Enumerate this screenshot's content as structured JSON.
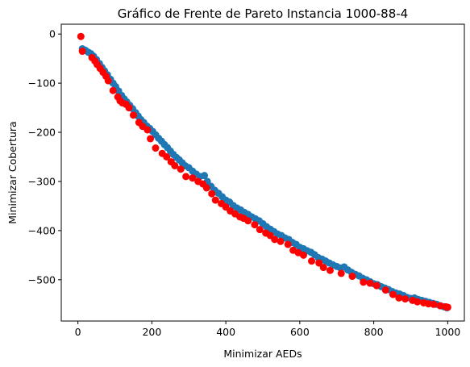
{
  "chart_data": {
    "type": "scatter",
    "title": "Gráfico de Frente de Pareto Instancia 1000-88-4",
    "xlabel": "Minimizar AEDs",
    "ylabel": "Minimizar Cobertura",
    "xlim": [
      -45,
      1045
    ],
    "ylim": [
      -584,
      20
    ],
    "xticks": [
      0,
      200,
      400,
      600,
      800,
      1000
    ],
    "yticks": [
      0,
      -100,
      -200,
      -300,
      -400,
      -500
    ],
    "grid": false,
    "series": [
      {
        "color": "#1f77b4",
        "points": [
          [
            12,
            -30
          ],
          [
            20,
            -33
          ],
          [
            28,
            -37
          ],
          [
            35,
            -40
          ],
          [
            42,
            -45
          ],
          [
            50,
            -52
          ],
          [
            58,
            -60
          ],
          [
            65,
            -68
          ],
          [
            72,
            -75
          ],
          [
            80,
            -83
          ],
          [
            88,
            -92
          ],
          [
            95,
            -100
          ],
          [
            102,
            -107
          ],
          [
            110,
            -116
          ],
          [
            118,
            -125
          ],
          [
            125,
            -132
          ],
          [
            132,
            -138
          ],
          [
            140,
            -145
          ],
          [
            148,
            -152
          ],
          [
            156,
            -160
          ],
          [
            163,
            -167
          ],
          [
            170,
            -174
          ],
          [
            178,
            -180
          ],
          [
            186,
            -187
          ],
          [
            194,
            -192
          ],
          [
            202,
            -198
          ],
          [
            210,
            -205
          ],
          [
            218,
            -212
          ],
          [
            226,
            -218
          ],
          [
            234,
            -225
          ],
          [
            242,
            -231
          ],
          [
            250,
            -238
          ],
          [
            258,
            -245
          ],
          [
            266,
            -251
          ],
          [
            274,
            -256
          ],
          [
            282,
            -262
          ],
          [
            290,
            -268
          ],
          [
            300,
            -272
          ],
          [
            310,
            -279
          ],
          [
            320,
            -285
          ],
          [
            330,
            -290
          ],
          [
            342,
            -288
          ],
          [
            350,
            -300
          ],
          [
            360,
            -310
          ],
          [
            370,
            -318
          ],
          [
            380,
            -324
          ],
          [
            390,
            -331
          ],
          [
            400,
            -338
          ],
          [
            410,
            -342
          ],
          [
            420,
            -349
          ],
          [
            430,
            -354
          ],
          [
            440,
            -358
          ],
          [
            450,
            -363
          ],
          [
            460,
            -367
          ],
          [
            470,
            -372
          ],
          [
            480,
            -376
          ],
          [
            490,
            -380
          ],
          [
            500,
            -386
          ],
          [
            510,
            -392
          ],
          [
            520,
            -397
          ],
          [
            530,
            -402
          ],
          [
            540,
            -407
          ],
          [
            550,
            -410
          ],
          [
            560,
            -415
          ],
          [
            570,
            -418
          ],
          [
            580,
            -424
          ],
          [
            590,
            -428
          ],
          [
            600,
            -434
          ],
          [
            610,
            -437
          ],
          [
            620,
            -441
          ],
          [
            630,
            -444
          ],
          [
            640,
            -449
          ],
          [
            650,
            -455
          ],
          [
            660,
            -458
          ],
          [
            670,
            -462
          ],
          [
            680,
            -466
          ],
          [
            690,
            -470
          ],
          [
            700,
            -473
          ],
          [
            710,
            -476
          ],
          [
            720,
            -474
          ],
          [
            730,
            -480
          ],
          [
            740,
            -485
          ],
          [
            750,
            -489
          ],
          [
            760,
            -492
          ],
          [
            770,
            -497
          ],
          [
            780,
            -500
          ],
          [
            790,
            -504
          ],
          [
            800,
            -508
          ],
          [
            810,
            -510
          ],
          [
            820,
            -514
          ],
          [
            830,
            -517
          ],
          [
            840,
            -520
          ],
          [
            850,
            -524
          ],
          [
            860,
            -527
          ],
          [
            870,
            -529
          ],
          [
            880,
            -532
          ],
          [
            890,
            -536
          ],
          [
            900,
            -538
          ],
          [
            910,
            -537
          ],
          [
            920,
            -540
          ],
          [
            930,
            -542
          ],
          [
            940,
            -544
          ],
          [
            950,
            -546
          ],
          [
            960,
            -548
          ],
          [
            970,
            -550
          ],
          [
            980,
            -553
          ],
          [
            990,
            -555
          ],
          [
            998,
            -557
          ]
        ]
      },
      {
        "color": "#ff0000",
        "points": [
          [
            8,
            -5
          ],
          [
            12,
            -35
          ],
          [
            38,
            -48
          ],
          [
            46,
            -55
          ],
          [
            52,
            -62
          ],
          [
            60,
            -70
          ],
          [
            68,
            -78
          ],
          [
            76,
            -86
          ],
          [
            82,
            -95
          ],
          [
            95,
            -115
          ],
          [
            108,
            -128
          ],
          [
            114,
            -136
          ],
          [
            120,
            -140
          ],
          [
            130,
            -143
          ],
          [
            138,
            -150
          ],
          [
            150,
            -165
          ],
          [
            165,
            -180
          ],
          [
            175,
            -188
          ],
          [
            188,
            -195
          ],
          [
            196,
            -213
          ],
          [
            210,
            -232
          ],
          [
            228,
            -243
          ],
          [
            240,
            -250
          ],
          [
            252,
            -260
          ],
          [
            262,
            -268
          ],
          [
            278,
            -275
          ],
          [
            292,
            -290
          ],
          [
            310,
            -293
          ],
          [
            325,
            -300
          ],
          [
            338,
            -305
          ],
          [
            348,
            -313
          ],
          [
            362,
            -325
          ],
          [
            372,
            -338
          ],
          [
            388,
            -345
          ],
          [
            400,
            -352
          ],
          [
            412,
            -360
          ],
          [
            425,
            -366
          ],
          [
            438,
            -372
          ],
          [
            448,
            -375
          ],
          [
            460,
            -380
          ],
          [
            478,
            -388
          ],
          [
            492,
            -398
          ],
          [
            508,
            -405
          ],
          [
            520,
            -410
          ],
          [
            532,
            -418
          ],
          [
            548,
            -422
          ],
          [
            568,
            -428
          ],
          [
            582,
            -440
          ],
          [
            596,
            -445
          ],
          [
            610,
            -450
          ],
          [
            632,
            -462
          ],
          [
            652,
            -466
          ],
          [
            664,
            -475
          ],
          [
            682,
            -481
          ],
          [
            712,
            -487
          ],
          [
            742,
            -493
          ],
          [
            772,
            -505
          ],
          [
            790,
            -507
          ],
          [
            808,
            -512
          ],
          [
            832,
            -521
          ],
          [
            852,
            -530
          ],
          [
            868,
            -537
          ],
          [
            885,
            -539
          ],
          [
            905,
            -542
          ],
          [
            918,
            -545
          ],
          [
            935,
            -547
          ],
          [
            948,
            -549
          ],
          [
            962,
            -550
          ],
          [
            980,
            -553
          ],
          [
            995,
            -555
          ],
          [
            1000,
            -556
          ]
        ]
      }
    ]
  }
}
